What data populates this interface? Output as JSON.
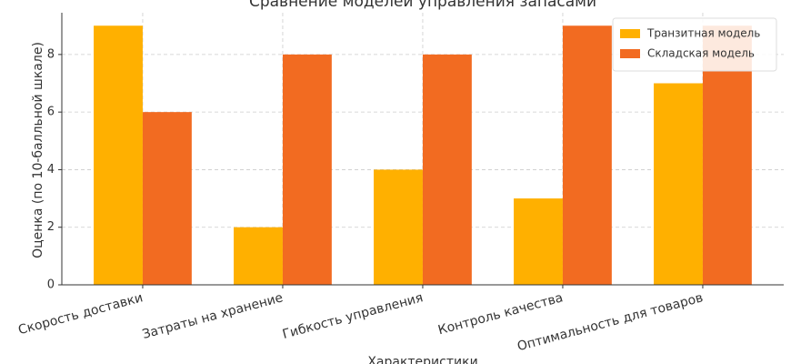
{
  "chart_data": {
    "type": "bar",
    "title": "Сравнение моделей управления запасами",
    "x_label": "Характеристики",
    "y_label": "Оценка (по 10-балльной шкале)",
    "categories": [
      "Скорость доставки",
      "Затраты на хранение",
      "Гибкость управления",
      "Контроль качества",
      "Оптимальность для товаров"
    ],
    "series": [
      {
        "name": "Транзитная модель",
        "color": "#ffb000",
        "values": [
          9,
          2,
          4,
          3,
          7
        ]
      },
      {
        "name": "Складская модель",
        "color": "#f26b21",
        "values": [
          6,
          8,
          8,
          9,
          9
        ]
      }
    ],
    "ylim": [
      0,
      9.45
    ],
    "yticks": [
      0,
      2,
      4,
      6,
      8
    ],
    "grid": true,
    "legend": "upper right"
  }
}
